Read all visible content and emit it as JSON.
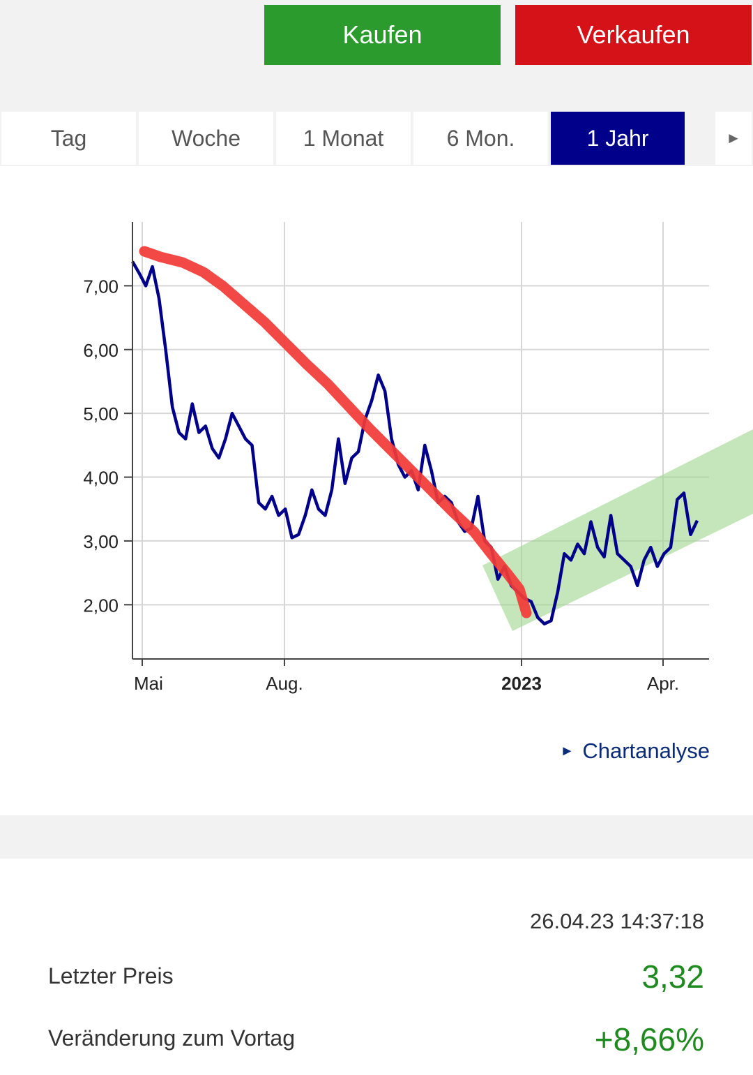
{
  "actions": {
    "buy_label": "Kaufen",
    "sell_label": "Verkaufen"
  },
  "tabs": [
    {
      "label": "Tag",
      "active": false
    },
    {
      "label": "Woche",
      "active": false
    },
    {
      "label": "1 Monat",
      "active": false
    },
    {
      "label": "6 Mon.",
      "active": false
    },
    {
      "label": "1 Jahr",
      "active": true
    }
  ],
  "tabs_next_icon": "►",
  "chart_data": {
    "type": "line",
    "ylim": [
      1.15,
      8.0
    ],
    "yticks": [
      {
        "v": 7,
        "label": "7,00"
      },
      {
        "v": 6,
        "label": "6,00"
      },
      {
        "v": 5,
        "label": "5,00"
      },
      {
        "v": 4,
        "label": "4,00"
      },
      {
        "v": 3,
        "label": "3,00"
      },
      {
        "v": 2,
        "label": "2,00"
      }
    ],
    "xticks": [
      {
        "label": "Mai",
        "bold": false
      },
      {
        "label": "Aug.",
        "bold": false
      },
      {
        "label": "2023",
        "bold": true
      },
      {
        "label": "Apr.",
        "bold": false
      }
    ],
    "series": [
      {
        "color": "#00008b",
        "values": [
          7.38,
          7.2,
          7.0,
          7.3,
          6.8,
          6.0,
          5.1,
          4.7,
          4.6,
          5.15,
          4.7,
          4.8,
          4.45,
          4.3,
          4.6,
          5.0,
          4.8,
          4.6,
          4.5,
          3.6,
          3.5,
          3.7,
          3.4,
          3.5,
          3.05,
          3.1,
          3.4,
          3.8,
          3.5,
          3.4,
          3.8,
          4.6,
          3.9,
          4.3,
          4.4,
          4.9,
          5.2,
          5.6,
          5.35,
          4.6,
          4.2,
          4.0,
          4.1,
          3.8,
          4.5,
          4.1,
          3.6,
          3.7,
          3.6,
          3.3,
          3.15,
          3.2,
          3.7,
          3.0,
          2.9,
          2.4,
          2.6,
          2.3,
          2.2,
          2.1,
          2.05,
          1.8,
          1.7,
          1.75,
          2.2,
          2.8,
          2.7,
          2.95,
          2.8,
          3.3,
          2.9,
          2.75,
          3.4,
          2.8,
          2.7,
          2.6,
          2.3,
          2.7,
          2.9,
          2.6,
          2.8,
          2.9,
          3.65,
          3.75,
          3.1,
          3.32
        ]
      }
    ]
  },
  "chart_link": {
    "label": "Chartanalyse",
    "icon": "►"
  },
  "quote": {
    "timestamp": "26.04.23 14:37:18",
    "last_price_label": "Letzter Preis",
    "last_price": "3,32",
    "change_label": "Veränderung zum Vortag",
    "change": "+8,66%"
  },
  "colors": {
    "buy": "#2a9b2c",
    "sell": "#d41218",
    "accent": "#00008b",
    "positive": "#1f8a1f",
    "annotation_red": "#f23a36",
    "annotation_green": "#9fd58c"
  }
}
